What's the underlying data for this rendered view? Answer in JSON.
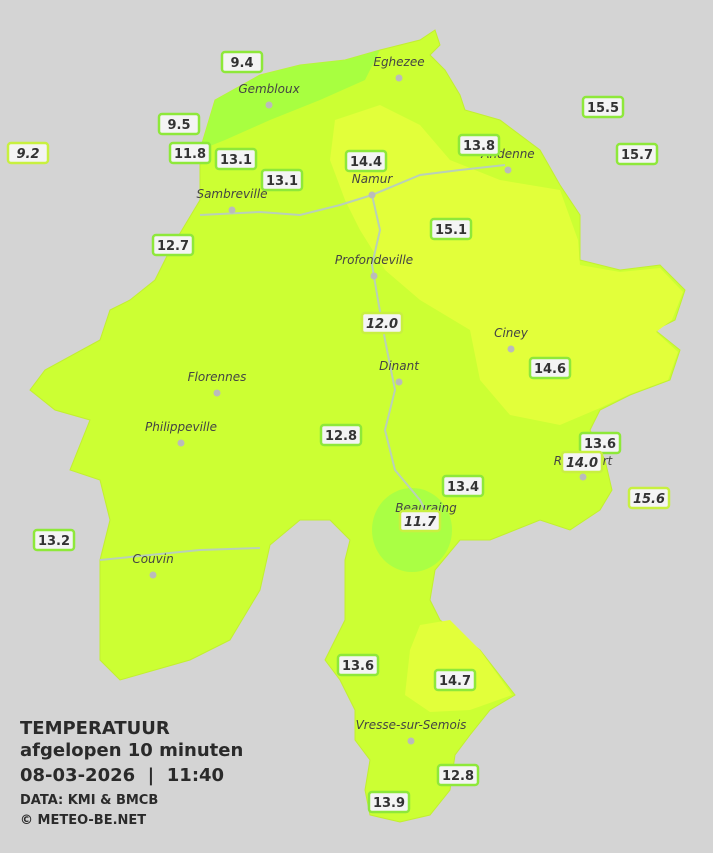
{
  "title": {
    "heading": "TEMPERATUUR",
    "subtitle": "afgelopen 10 minuten",
    "datetime": "08-03-2026  |  11:40",
    "source": "DATA: KMI & BMCB",
    "credit": "© METEO-BE.NET"
  },
  "places": [
    "Eghezee",
    "Gembloux",
    "Andenne",
    "Namur",
    "Sambreville",
    "Profondeville",
    "Ciney",
    "Dinant",
    "Florennes",
    "Philippeville",
    "Rochefort",
    "Beauraing",
    "Couvin",
    "Vresse-sur-Semois"
  ],
  "stations": [
    "9.4",
    "9.5",
    "9.2",
    "11.8",
    "13.1",
    "13.1",
    "14.4",
    "13.8",
    "15.5",
    "15.7",
    "15.1",
    "12.7",
    "12.0",
    "14.6",
    "12.8",
    "13.6",
    "14.0",
    "13.4",
    "15.6",
    "11.7",
    "13.2",
    "13.6",
    "14.7",
    "12.8",
    "13.9"
  ]
}
